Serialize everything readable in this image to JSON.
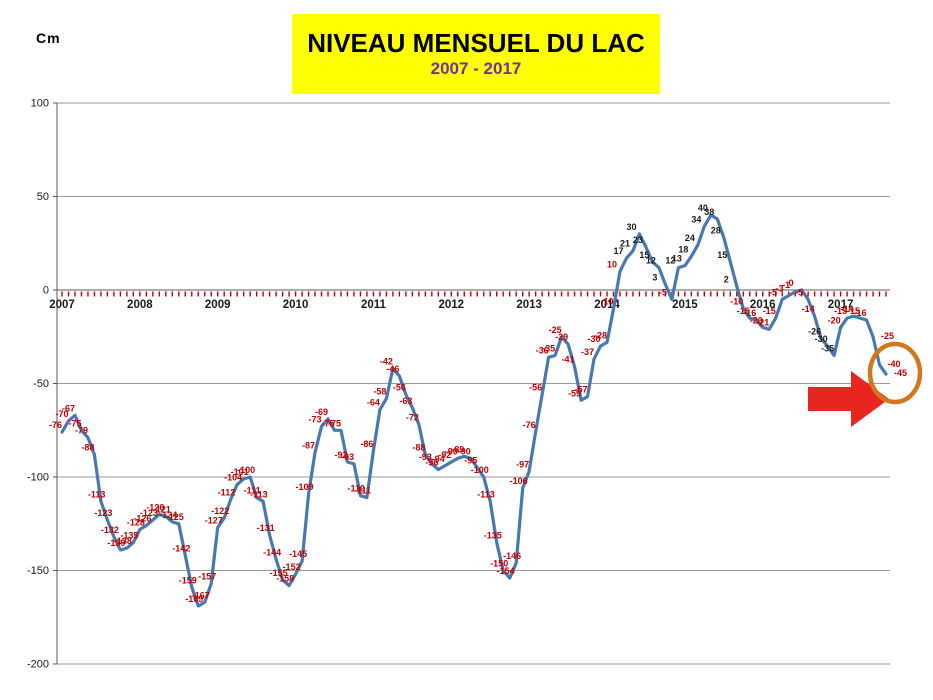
{
  "header": {
    "unit_label": "Cm",
    "title": "NIVEAU MENSUEL DU LAC",
    "subtitle": "2007 - 2017",
    "title_bg": "#FFFF00",
    "title_color": "#000000",
    "subtitle_color": "#7030A0"
  },
  "chart_data": {
    "type": "line",
    "title": "NIVEAU MENSUEL DU LAC",
    "subtitle": "2007 - 2017",
    "ylabel": "Cm",
    "ylim": [
      -200,
      100
    ],
    "yticks": [
      100,
      50,
      0,
      -50,
      -100,
      -150,
      -200
    ],
    "xticks": [
      "2007",
      "2008",
      "2009",
      "2010",
      "2011",
      "2012",
      "2013",
      "2014",
      "2015",
      "2016",
      "2017"
    ],
    "x_frequency": "monthly",
    "x_start": "2007-01",
    "x_end": "2017-08",
    "grid": "horizontal",
    "legend": "none",
    "line_color": "#4878B0",
    "axis_color": "#808080",
    "zero_tick_color": "#C00000",
    "label_color_default": "#C00000",
    "label_color_alt": "#1A1A1A",
    "series": [
      {
        "name": "Niveau mensuel du lac (cm)",
        "values": [
          -76,
          -70,
          -67,
          -75,
          -79,
          -88,
          -113,
          -123,
          -132,
          -139,
          -138,
          -135,
          -128,
          -126,
          -123,
          -120,
          -121,
          -124,
          -125,
          -142,
          -159,
          -169,
          -167,
          -157,
          -127,
          -122,
          -112,
          -104,
          -101,
          -100,
          -111,
          -113,
          -131,
          -144,
          -155,
          -158,
          -152,
          -145,
          -109,
          -87,
          -73,
          -69,
          -75,
          -75,
          -92,
          -93,
          -110,
          -111,
          -86,
          -64,
          -58,
          -42,
          -46,
          -56,
          -63,
          -72,
          -88,
          -93,
          -96,
          -94,
          -92,
          -90,
          -89,
          -90,
          -95,
          -100,
          -113,
          -135,
          -150,
          -154,
          -146,
          -106,
          -97,
          -76,
          -56,
          -36,
          -35,
          -25,
          -29,
          -41,
          -59,
          -57,
          -37,
          -30,
          -28,
          -10,
          10,
          17,
          21,
          30,
          23,
          15,
          12,
          3,
          -5,
          12,
          13,
          18,
          24,
          34,
          40,
          38,
          28,
          15,
          2,
          -10,
          -15,
          -16,
          -20,
          -21,
          -15,
          -5,
          -3,
          -1,
          0,
          -5,
          -14,
          -26,
          -30,
          -35,
          -20,
          -15,
          -14,
          -15,
          -16,
          -25,
          -40,
          -45
        ]
      }
    ],
    "black_label_indices": [
      87,
      88,
      89,
      90,
      91,
      92,
      93,
      95,
      96,
      97,
      98,
      99,
      100,
      101,
      102,
      103,
      104,
      117,
      118,
      119
    ],
    "annotations": {
      "arrow": {
        "shape": "right-arrow",
        "color": "#E8251F",
        "points_at": "last value"
      },
      "circle": {
        "shape": "ellipse-outline",
        "color": "#D2771E",
        "around": "-45"
      }
    }
  }
}
